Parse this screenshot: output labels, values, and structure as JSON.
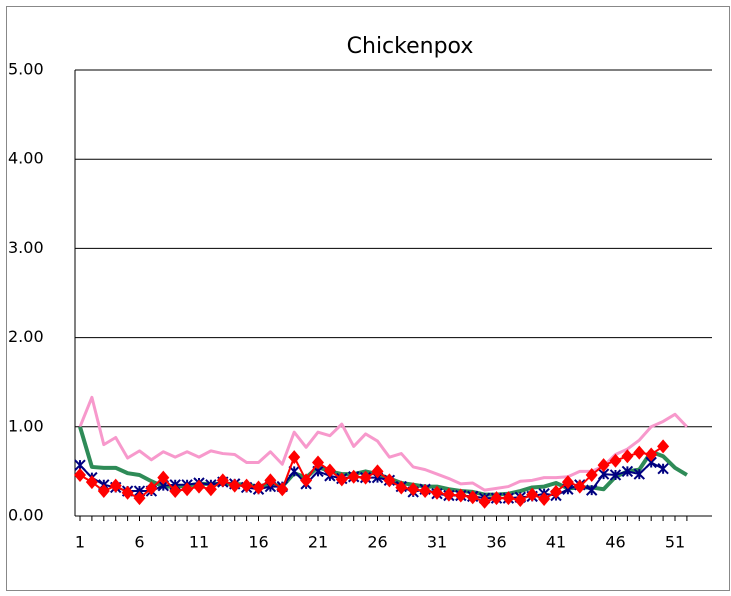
{
  "chart_data": {
    "type": "line",
    "title": "Chickenpox",
    "categories": [
      1,
      null,
      null,
      null,
      null,
      6,
      null,
      null,
      null,
      null,
      11,
      null,
      null,
      null,
      null,
      16,
      null,
      null,
      null,
      null,
      21,
      null,
      null,
      null,
      null,
      26,
      null,
      null,
      null,
      null,
      31,
      null,
      null,
      null,
      null,
      36,
      null,
      null,
      null,
      null,
      41,
      null,
      null,
      null,
      null,
      46,
      null,
      null,
      null,
      null,
      51,
      null
    ],
    "ylim": [
      0,
      5
    ],
    "yticks": [
      {
        "value": 0,
        "label": "0.00"
      },
      {
        "value": 1,
        "label": "1.00"
      },
      {
        "value": 2,
        "label": "2.00"
      },
      {
        "value": 3,
        "label": "3.00"
      },
      {
        "value": 4,
        "label": "4.00"
      },
      {
        "value": 5,
        "label": "5.00"
      }
    ],
    "grid": true,
    "series": [
      {
        "color": "#f799cc",
        "values": [
          1.0,
          1.33,
          0.8,
          0.88,
          0.65,
          0.73,
          0.63,
          0.72,
          0.66,
          0.72,
          0.66,
          0.73,
          0.7,
          0.69,
          0.6,
          0.6,
          0.72,
          0.58,
          0.94,
          0.77,
          0.94,
          0.9,
          1.03,
          0.78,
          0.92,
          0.84,
          0.66,
          0.7,
          0.55,
          0.52,
          0.47,
          0.42,
          0.36,
          0.37,
          0.29,
          0.31,
          0.33,
          0.39,
          0.4,
          0.43,
          0.43,
          0.44,
          0.5,
          0.5,
          0.56,
          0.69,
          0.75,
          0.85,
          1.0,
          1.06,
          1.14,
          1.0
        ]
      },
      {
        "color": "#2e8b57",
        "values": [
          1.0,
          0.55,
          0.54,
          0.54,
          0.48,
          0.46,
          0.39,
          0.33,
          0.33,
          0.34,
          0.36,
          0.36,
          0.36,
          0.36,
          0.35,
          0.33,
          0.36,
          0.33,
          0.48,
          0.43,
          0.55,
          0.5,
          0.47,
          0.47,
          0.5,
          0.47,
          0.42,
          0.37,
          0.35,
          0.33,
          0.33,
          0.3,
          0.28,
          0.27,
          0.24,
          0.24,
          0.25,
          0.28,
          0.32,
          0.33,
          0.37,
          0.31,
          0.32,
          0.32,
          0.3,
          0.44,
          0.5,
          0.52,
          0.72,
          0.67,
          0.54,
          0.46
        ]
      },
      {
        "color": "#000080",
        "marker": "x",
        "values": [
          0.57,
          0.43,
          0.35,
          0.32,
          0.28,
          0.28,
          0.28,
          0.34,
          0.35,
          0.35,
          0.37,
          0.35,
          0.38,
          0.36,
          0.32,
          0.3,
          0.33,
          0.33,
          0.5,
          0.36,
          0.5,
          0.45,
          0.42,
          0.44,
          0.43,
          0.43,
          0.4,
          0.33,
          0.27,
          0.3,
          0.25,
          0.23,
          0.23,
          0.22,
          0.2,
          0.2,
          0.2,
          0.21,
          0.22,
          0.25,
          0.23,
          0.3,
          0.35,
          0.29,
          0.47,
          0.46,
          0.5,
          0.47,
          0.6,
          0.53,
          null,
          null
        ]
      },
      {
        "color": "#ff0000",
        "marker": "diamond",
        "values": [
          0.46,
          0.38,
          0.28,
          0.34,
          0.26,
          0.2,
          0.31,
          0.43,
          0.28,
          0.3,
          0.33,
          0.3,
          0.4,
          0.34,
          0.34,
          0.32,
          0.4,
          0.3,
          0.66,
          0.4,
          0.6,
          0.51,
          0.41,
          0.44,
          0.43,
          0.5,
          0.4,
          0.32,
          0.3,
          0.28,
          0.26,
          0.24,
          0.23,
          0.21,
          0.16,
          0.2,
          0.2,
          0.18,
          0.24,
          0.19,
          0.27,
          0.38,
          0.33,
          0.46,
          0.57,
          0.62,
          0.67,
          0.71,
          0.69,
          0.78,
          null,
          null
        ]
      }
    ]
  }
}
